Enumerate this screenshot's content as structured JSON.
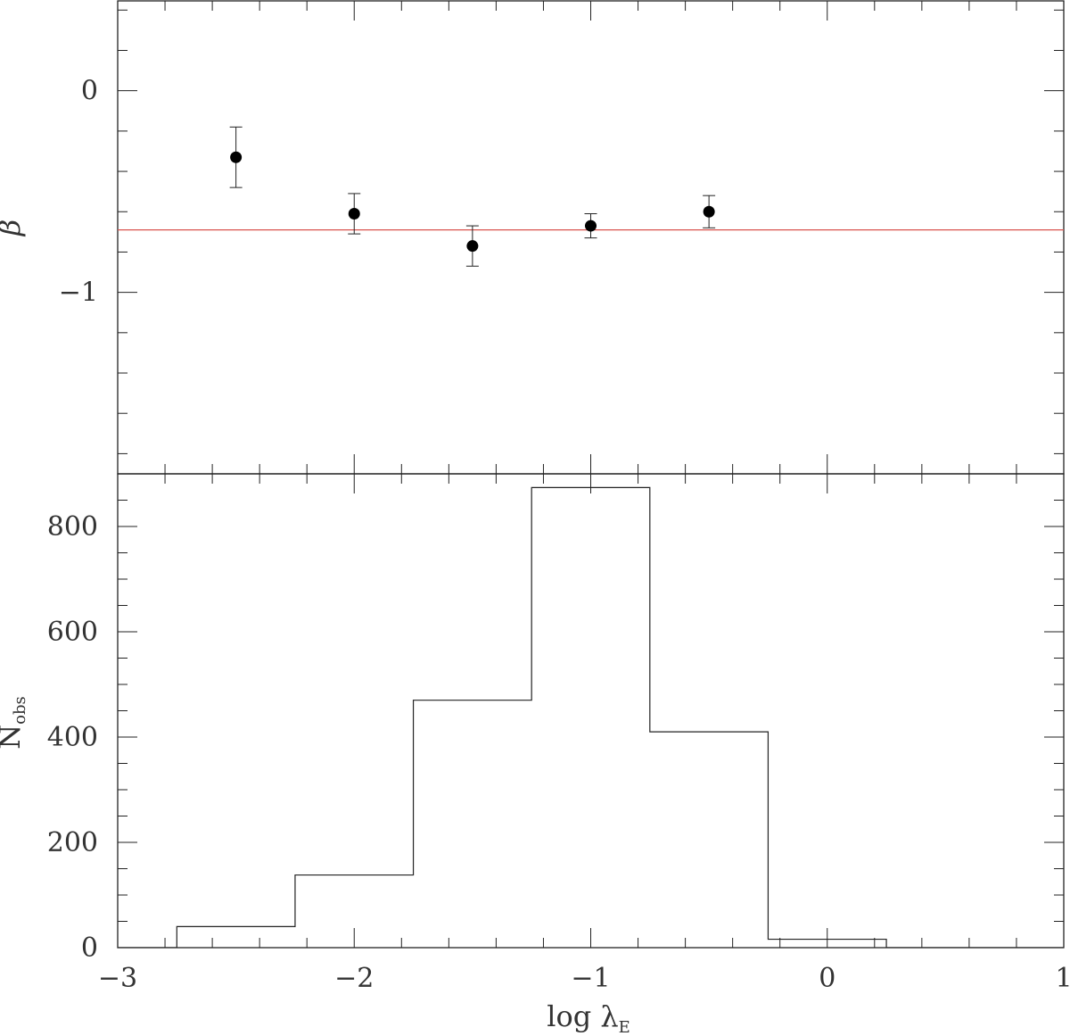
{
  "chart_data": [
    {
      "type": "scatter",
      "panel": "top",
      "xlabel": "",
      "ylabel": "β",
      "xlim": [
        -3,
        1
      ],
      "ylim": [
        -1.9,
        0.45
      ],
      "yticks": [
        0,
        -1
      ],
      "ytick_labels": [
        "0",
        "−1"
      ],
      "points": [
        {
          "x": -2.5,
          "y": -0.33,
          "err_low": 0.15,
          "err_high": 0.15
        },
        {
          "x": -2.0,
          "y": -0.61,
          "err_low": 0.1,
          "err_high": 0.1
        },
        {
          "x": -1.5,
          "y": -0.77,
          "err_low": 0.1,
          "err_high": 0.1
        },
        {
          "x": -1.0,
          "y": -0.67,
          "err_low": 0.06,
          "err_high": 0.06
        },
        {
          "x": -0.5,
          "y": -0.6,
          "err_low": 0.08,
          "err_high": 0.08
        }
      ],
      "reference_line": {
        "y": -0.69,
        "color": "#d9534f"
      },
      "marker_color": "#000000"
    },
    {
      "type": "histogram",
      "panel": "bottom",
      "xlabel": "log λ",
      "xlabel_sub": "E",
      "ylabel": "N",
      "ylabel_sub": "obs",
      "xlim": [
        -3,
        1
      ],
      "ylim": [
        0,
        900
      ],
      "xticks": [
        -3,
        -2,
        -1,
        0,
        1
      ],
      "xtick_labels": [
        "−3",
        "−2",
        "−1",
        "0",
        "1"
      ],
      "yticks": [
        0,
        200,
        400,
        600,
        800
      ],
      "ytick_labels": [
        "0",
        "200",
        "400",
        "600",
        "800"
      ],
      "bins": [
        {
          "x0": -3.25,
          "x1": -2.75,
          "count": 0
        },
        {
          "x0": -2.75,
          "x1": -2.25,
          "count": 40
        },
        {
          "x0": -2.25,
          "x1": -1.75,
          "count": 138
        },
        {
          "x0": -1.75,
          "x1": -1.25,
          "count": 470
        },
        {
          "x0": -1.25,
          "x1": -0.75,
          "count": 874
        },
        {
          "x0": -0.75,
          "x1": -0.25,
          "count": 410
        },
        {
          "x0": -0.25,
          "x1": 0.25,
          "count": 16
        },
        {
          "x0": 0.25,
          "x1": 0.75,
          "count": 0
        },
        {
          "x0": 0.75,
          "x1": 1.25,
          "count": 0
        }
      ]
    }
  ]
}
